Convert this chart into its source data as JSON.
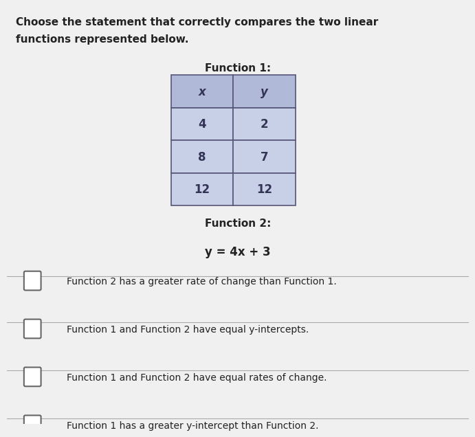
{
  "title_line1": "Choose the statement that correctly compares the two linear",
  "title_line2": "functions represented below.",
  "title_fontsize": 11,
  "function1_label": "Function 1:",
  "table_headers": [
    "x",
    "y"
  ],
  "table_data": [
    [
      "4",
      "2"
    ],
    [
      "8",
      "7"
    ],
    [
      "12",
      "12"
    ]
  ],
  "table_bg": "#c8d0e8",
  "table_header_bg": "#b0bad8",
  "function2_label": "Function 2:",
  "function2_eq": "y = 4x + 3",
  "options": [
    "Function 2 has a greater rate of change than Function 1.",
    "Function 1 and Function 2 have equal y-intercepts.",
    "Function 1 and Function 2 have equal rates of change.",
    "Function 1 has a greater y-intercept than Function 2."
  ],
  "bg_color": "#f0f0f0",
  "text_color": "#222222",
  "option_fontsize": 10,
  "checkbox_size": 0.022
}
